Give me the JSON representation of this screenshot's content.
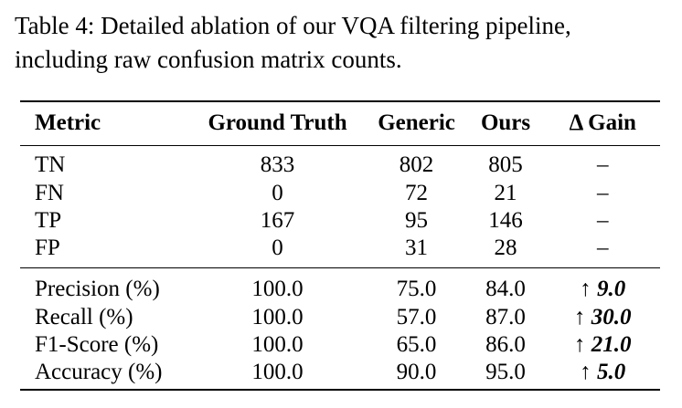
{
  "caption": {
    "line1": "Table 4: Detailed ablation of our VQA filtering pipeline,",
    "line2": "including raw confusion matrix counts."
  },
  "table": {
    "headers": [
      "Metric",
      "Ground Truth",
      "Generic",
      "Ours",
      "Δ Gain"
    ],
    "counts": [
      {
        "metric": "TN",
        "ground_truth": "833",
        "generic": "802",
        "ours": "805",
        "gain": "–"
      },
      {
        "metric": "FN",
        "ground_truth": "0",
        "generic": "72",
        "ours": "21",
        "gain": "–"
      },
      {
        "metric": "TP",
        "ground_truth": "167",
        "generic": "95",
        "ours": "146",
        "gain": "–"
      },
      {
        "metric": "FP",
        "ground_truth": "0",
        "generic": "31",
        "ours": "28",
        "gain": "–"
      }
    ],
    "metrics": [
      {
        "metric": "Precision (%)",
        "ground_truth": "100.0",
        "generic": "75.0",
        "ours": "84.0",
        "gain_arrow": "↑ ",
        "gain_value": "9.0"
      },
      {
        "metric": "Recall (%)",
        "ground_truth": "100.0",
        "generic": "57.0",
        "ours": "87.0",
        "gain_arrow": "↑ ",
        "gain_value": "30.0"
      },
      {
        "metric": "F1-Score (%)",
        "ground_truth": "100.0",
        "generic": "65.0",
        "ours": "86.0",
        "gain_arrow": "↑ ",
        "gain_value": "21.0"
      },
      {
        "metric": "Accuracy (%)",
        "ground_truth": "100.0",
        "generic": "90.0",
        "ours": "95.0",
        "gain_arrow": "↑ ",
        "gain_value": "5.0"
      }
    ]
  }
}
